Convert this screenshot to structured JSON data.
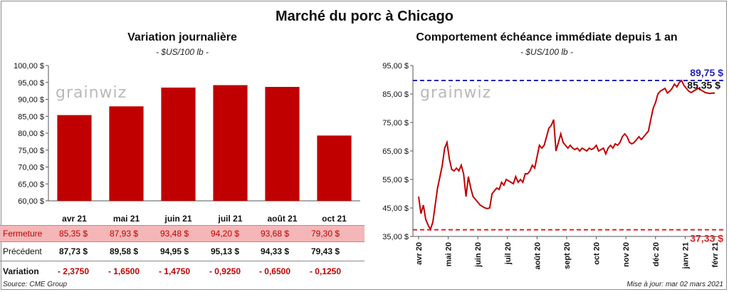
{
  "title": "Marché du porc à Chicago",
  "left_chart": {
    "title": "Variation  journalière",
    "unit": "- $US/100 lb -",
    "watermark": "grainwiz"
  },
  "right_chart": {
    "title": "Comportement  échéance immédiate depuis 1 an",
    "unit": "- $US/100 lb -",
    "watermark": "grainwiz"
  },
  "table": {
    "rows": [
      {
        "label": "Fermeture",
        "values": [
          "85,35  $",
          "87,93  $",
          "93,48  $",
          "94,20  $",
          "93,68  $",
          "79,30  $"
        ]
      },
      {
        "label": "Précédent",
        "values": [
          "87,73  $",
          "89,58  $",
          "94,95  $",
          "95,13  $",
          "94,33  $",
          "79,43  $"
        ]
      },
      {
        "label": "Variation",
        "values": [
          "- 2,3750",
          "- 1,6500",
          "- 1,4750",
          "- 0,9250",
          "- 0,6500",
          "- 0,1250"
        ]
      }
    ]
  },
  "footer": {
    "source": "Source: CME Group",
    "updated": "Mise à jour: mar 02 mars 2021"
  },
  "colors": {
    "bar": "#c00000",
    "line": "#c00000",
    "high": "#2222bb",
    "low": "#e02020"
  },
  "chart_data": [
    {
      "type": "bar",
      "categories": [
        "avr 21",
        "mai 21",
        "juin 21",
        "juil 21",
        "août 21",
        "oct 21"
      ],
      "values": [
        85.35,
        87.93,
        93.48,
        94.2,
        93.68,
        79.3
      ],
      "ylim": [
        60,
        100
      ],
      "yticks": [
        60,
        65,
        70,
        75,
        80,
        85,
        90,
        95,
        100
      ],
      "ytick_labels": [
        "60,00 $",
        "65,00 $",
        "70,00 $",
        "75,00 $",
        "80,00 $",
        "85,00 $",
        "90,00 $",
        "95,00 $",
        "100,00 $"
      ],
      "grid": false
    },
    {
      "type": "line",
      "x": [
        0,
        2,
        4,
        6,
        8,
        10,
        12,
        14,
        16,
        18,
        20,
        22,
        24,
        26,
        28,
        30,
        32,
        34,
        36,
        38,
        40,
        42,
        44,
        46,
        48,
        50,
        52,
        54,
        56,
        58,
        60,
        62,
        64,
        66,
        68,
        70,
        72,
        74,
        76,
        78,
        80,
        82,
        84,
        86,
        88,
        90,
        92,
        94,
        96,
        98,
        100,
        102,
        104,
        106,
        108,
        110,
        112,
        114,
        116,
        118,
        120,
        122,
        124,
        126,
        128,
        130,
        132,
        134,
        136,
        138,
        140,
        142,
        144,
        146,
        148,
        150,
        152,
        154,
        156,
        158,
        160,
        162,
        164,
        166,
        168,
        170,
        172,
        174,
        176,
        178,
        180,
        182,
        184,
        186,
        188,
        190,
        192,
        194,
        196,
        198,
        200,
        202,
        204,
        206,
        208,
        210,
        212,
        214,
        216,
        218,
        220,
        222,
        224,
        226,
        228,
        230,
        232,
        234,
        236,
        238,
        240,
        242,
        244,
        246,
        248,
        250
      ],
      "y": [
        49.0,
        43.0,
        46.0,
        41.0,
        39.0,
        37.5,
        40.0,
        46.0,
        52.0,
        56.0,
        60.0,
        66.0,
        68.0,
        62.0,
        58.5,
        58.0,
        59.0,
        58.0,
        60.0,
        57.0,
        49.0,
        56.0,
        52.0,
        49.0,
        48.0,
        47.0,
        46.0,
        45.5,
        45.0,
        44.8,
        45.0,
        50.0,
        51.0,
        52.0,
        51.5,
        54.0,
        53.0,
        55.0,
        54.5,
        54.0,
        53.5,
        56.0,
        54.0,
        55.0,
        54.0,
        57.0,
        57.0,
        58.0,
        60.0,
        59.0,
        63.0,
        67.0,
        66.0,
        67.0,
        70.0,
        73.0,
        74.0,
        76.0,
        65.0,
        68.0,
        71.0,
        68.0,
        67.0,
        66.0,
        67.0,
        66.0,
        65.5,
        66.0,
        65.0,
        66.0,
        65.5,
        65.0,
        66.0,
        65.5,
        66.0,
        67.0,
        65.0,
        65.5,
        66.0,
        64.0,
        66.0,
        67.0,
        66.0,
        67.5,
        67.0,
        68.0,
        70.0,
        71.0,
        70.0,
        68.0,
        67.5,
        68.0,
        69.0,
        70.0,
        69.0,
        70.0,
        71.0,
        72.0,
        76.0,
        80.0,
        82.0,
        85.0,
        86.0,
        86.5,
        87.0,
        85.35,
        86.0,
        87.0,
        88.5,
        87.5,
        89.0,
        89.75,
        88.0,
        87.0,
        86.0,
        85.5,
        86.0,
        86.5,
        87.0,
        86.5,
        86.0,
        85.5,
        85.35,
        85.2,
        85.3,
        85.35
      ],
      "xtick_labels": [
        "avr 20",
        "mai 20",
        "juin 20",
        "juil 20",
        "août 20",
        "sept 20",
        "oct 20",
        "nov 20",
        "déc 20",
        "janv 21",
        "févr 21"
      ],
      "yticks": [
        35,
        45,
        55,
        65,
        75,
        85,
        95
      ],
      "ytick_labels": [
        "35,00 $",
        "45,00 $",
        "55,00 $",
        "65,00 $",
        "75,00 $",
        "85,00 $",
        "95,00 $"
      ],
      "ylim": [
        35,
        95
      ],
      "high_label": "89,75 $",
      "high_value": 89.75,
      "low_label": "37,33 $",
      "low_value": 37.33,
      "last_label": "85,35 $",
      "last_value": 85.35,
      "grid": false
    }
  ]
}
